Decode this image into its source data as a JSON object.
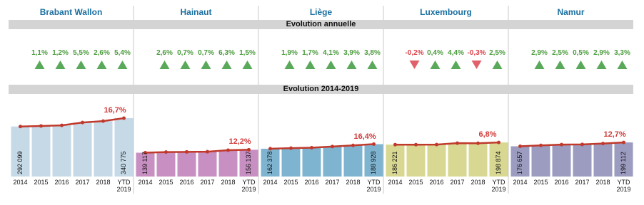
{
  "header": {
    "annual_title": "Evolution annuelle",
    "trend_title": "Evolution 2014-2019"
  },
  "panels": [
    {
      "name": "Brabant Wallon",
      "color": "#c6d9e7",
      "annual": {
        "values": [
          1.1,
          1.2,
          5.5,
          2.6,
          5.4
        ],
        "value_labels": [
          "1,1%",
          "1,2%",
          "5,5%",
          "2,6%",
          "5,4%"
        ]
      },
      "categories": [
        "2014",
        "2015",
        "2016",
        "2017",
        "2018",
        "YTD 2019"
      ],
      "values": [
        292099,
        295300,
        298900,
        315300,
        323500,
        340775
      ],
      "value_labels": [
        "292 099",
        null,
        null,
        null,
        null,
        "340 775"
      ],
      "change": 16.7,
      "change_label": "16,7%"
    },
    {
      "name": "Hainaut",
      "color": "#c78fc2",
      "annual": {
        "values": [
          2.6,
          0.7,
          0.7,
          6.3,
          1.5
        ],
        "value_labels": [
          "2,6%",
          "0,7%",
          "0,7%",
          "6,3%",
          "1,5%"
        ]
      },
      "categories": [
        "2014",
        "2015",
        "2016",
        "2017",
        "2018",
        "YTD 2019"
      ],
      "values": [
        139117,
        142700,
        143700,
        144700,
        153900,
        156137
      ],
      "value_labels": [
        "139 117",
        null,
        null,
        null,
        null,
        "156 137"
      ],
      "change": 12.2,
      "change_label": "12,2%"
    },
    {
      "name": "Liège",
      "color": "#7fb4d0",
      "annual": {
        "values": [
          1.9,
          1.7,
          4.1,
          3.9,
          3.8
        ],
        "value_labels": [
          "1,9%",
          "1,7%",
          "4,1%",
          "3,9%",
          "3,8%"
        ]
      },
      "categories": [
        "2014",
        "2015",
        "2016",
        "2017",
        "2018",
        "YTD 2019"
      ],
      "values": [
        162378,
        165500,
        168300,
        175200,
        182000,
        188928
      ],
      "value_labels": [
        "162 378",
        null,
        null,
        null,
        null,
        "188 928"
      ],
      "change": 16.4,
      "change_label": "16,4%"
    },
    {
      "name": "Luxembourg",
      "color": "#d8d892",
      "annual": {
        "values": [
          -0.2,
          0.4,
          4.4,
          -0.3,
          2.5
        ],
        "value_labels": [
          "-0,2%",
          "0,4%",
          "4,4%",
          "-0,3%",
          "2,5%"
        ]
      },
      "categories": [
        "2014",
        "2015",
        "2016",
        "2017",
        "2018",
        "YTD 2019"
      ],
      "values": [
        186221,
        185800,
        186600,
        194800,
        194200,
        198874
      ],
      "value_labels": [
        "186 221",
        null,
        null,
        null,
        null,
        "198 874"
      ],
      "change": 6.8,
      "change_label": "6,8%"
    },
    {
      "name": "Namur",
      "color": "#9c9cc0",
      "annual": {
        "values": [
          2.9,
          2.5,
          0.5,
          2.9,
          3.3
        ],
        "value_labels": [
          "2,9%",
          "2,5%",
          "0,5%",
          "2,9%",
          "3,3%"
        ]
      },
      "categories": [
        "2014",
        "2015",
        "2016",
        "2017",
        "2018",
        "YTD 2019"
      ],
      "values": [
        176657,
        181800,
        186300,
        187300,
        192700,
        199112
      ],
      "value_labels": [
        "176 657",
        null,
        null,
        null,
        null,
        "199 112"
      ],
      "change": 12.7,
      "change_label": "12,7%"
    }
  ]
}
